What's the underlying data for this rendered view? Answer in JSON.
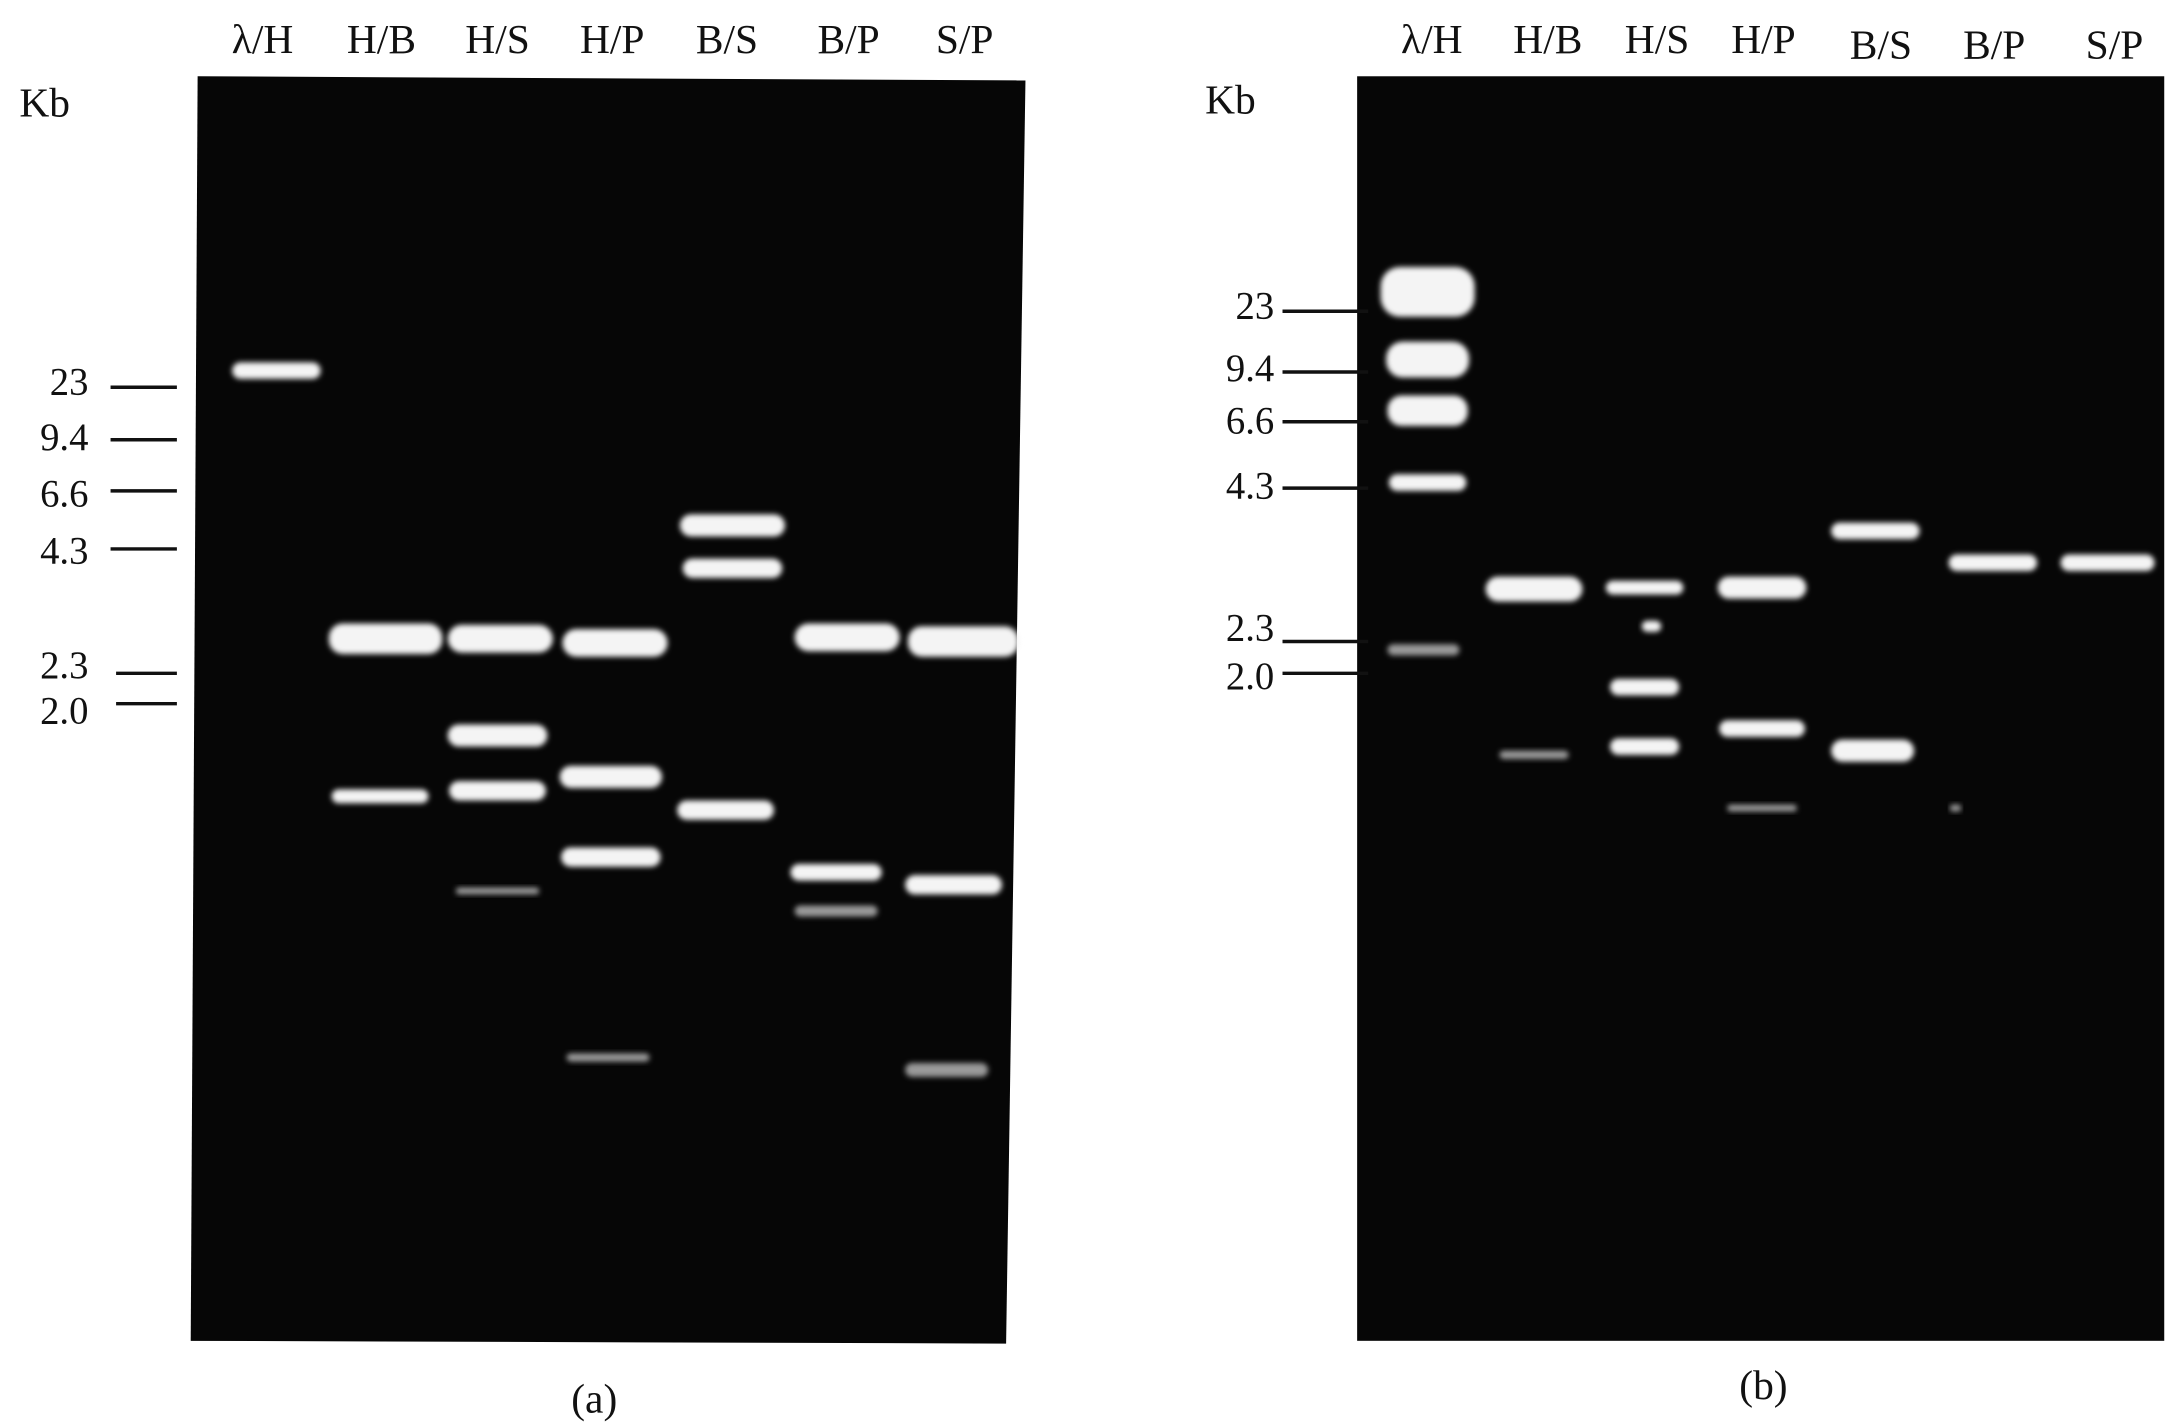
{
  "panels": [
    {
      "unit": "Kb",
      "lanes": [
        "λ/H",
        "H/B",
        "H/S",
        "H/P",
        "B/S",
        "B/P",
        "S/P"
      ],
      "markers": [
        "23",
        "9.4",
        "6.6",
        "4.3",
        "2.3",
        "2.0"
      ],
      "caption": "(a)"
    },
    {
      "unit": "Kb",
      "lanes": [
        "λ/H",
        "H/B",
        "H/S",
        "H/P",
        "B/S",
        "B/P",
        "S/P"
      ],
      "markers": [
        "23",
        "9.4",
        "6.6",
        "4.3",
        "2.3",
        "2.0"
      ],
      "caption": "(b)"
    }
  ]
}
